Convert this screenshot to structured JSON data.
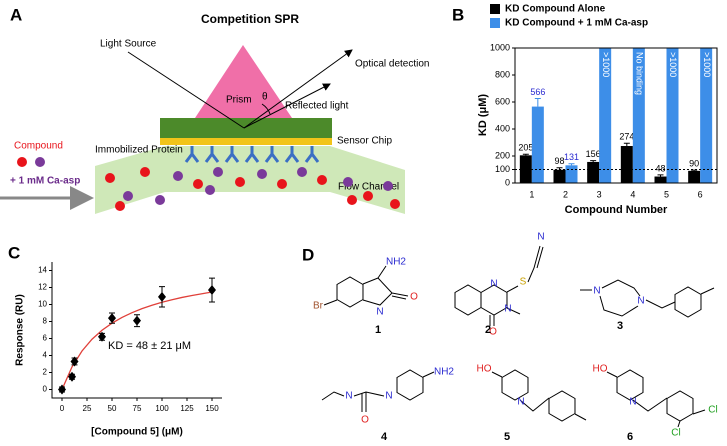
{
  "panel_a": {
    "label": "A",
    "title": "Competition SPR",
    "light_source": "Light Source",
    "optical_detection": "Optical detection",
    "prism": "Prism",
    "theta": "θ",
    "reflected_light": "Reflected light",
    "sensor_chip": "Sensor Chip",
    "immobilized_protein": "Immobilized Protein",
    "compound": "Compound",
    "ca_asp": "+ 1 mM Ca-asp",
    "flow_channel": "Flow Channel"
  },
  "chart_data": [
    {
      "type": "bar",
      "panel_label": "B",
      "xlabel": "Compound Number",
      "ylabel": "KD (μM)",
      "categories": [
        "1",
        "2",
        "3",
        "4",
        "5",
        "6"
      ],
      "series": [
        {
          "name": "KD Compound Alone",
          "color": "#000000",
          "label_color": "#000000",
          "values": [
            205,
            98,
            156,
            274,
            48,
            90
          ],
          "errors": [
            8,
            15,
            10,
            20,
            12,
            5
          ]
        },
        {
          "name": "KD Compound + 1 mM Ca-asp",
          "color": "#3d8ee8",
          "label_color": "#2a2ad0",
          "values": [
            566,
            131,
            1000,
            1000,
            1000,
            1000
          ],
          "value_labels": [
            "566",
            "131",
            ">1000",
            "No binding",
            ">1000",
            ">1000"
          ],
          "errors": [
            60,
            12,
            null,
            null,
            null,
            null
          ]
        }
      ],
      "ylim": [
        0,
        1000
      ],
      "yticks": [
        0,
        100,
        200,
        400,
        600,
        800,
        1000
      ],
      "reference_line": 100
    },
    {
      "type": "scatter",
      "panel_label": "C",
      "xlabel": "[Compound 5] (μM)",
      "ylabel": "Response (RU)",
      "annotation": "KD = 48 ± 21 μM",
      "xlim": [
        -10,
        160
      ],
      "xticks": [
        0,
        25,
        50,
        75,
        100,
        125,
        150
      ],
      "ylim": [
        -1,
        15
      ],
      "yticks": [
        0,
        2,
        4,
        6,
        8,
        10,
        12,
        14
      ],
      "series": [
        {
          "color": "#000000",
          "x": [
            0,
            10,
            12.5,
            40,
            50,
            75,
            100,
            150
          ],
          "values": [
            0,
            1.5,
            3.3,
            6.2,
            8.4,
            8.1,
            10.9,
            11.7
          ],
          "errors": [
            0.3,
            0.3,
            0.4,
            0.4,
            0.6,
            0.7,
            1.2,
            1.4
          ]
        }
      ],
      "fit": {
        "color": "#e0403a",
        "x": [
          0,
          10,
          20,
          30,
          40,
          50,
          60,
          70,
          80,
          90,
          100,
          110,
          120,
          130,
          140,
          150
        ],
        "values": [
          0,
          2.66,
          4.53,
          5.91,
          6.97,
          7.8,
          8.48,
          9.04,
          9.51,
          9.91,
          10.26,
          10.56,
          10.83,
          11.06,
          11.27,
          11.47
        ]
      }
    }
  ],
  "panel_d": {
    "label": "D",
    "compounds": [
      {
        "number": 1,
        "atoms": [
          {
            "text": "Br",
            "color": "#a0522d"
          },
          {
            "text": "NH2",
            "color": "#2a2ad0"
          },
          {
            "text": "O",
            "color": "#e02020"
          },
          {
            "text": "N",
            "color": "#2a2ad0"
          }
        ]
      },
      {
        "number": 2,
        "atoms": [
          {
            "text": "N",
            "color": "#2a2ad0"
          },
          {
            "text": "N",
            "color": "#2a2ad0"
          },
          {
            "text": "S",
            "color": "#c8a000"
          },
          {
            "text": "N",
            "color": "#2a2ad0"
          },
          {
            "text": "O",
            "color": "#e02020"
          }
        ]
      },
      {
        "number": 3,
        "atoms": [
          {
            "text": "N",
            "color": "#2a2ad0"
          },
          {
            "text": "N",
            "color": "#2a2ad0"
          }
        ]
      },
      {
        "number": 4,
        "atoms": [
          {
            "text": "N",
            "color": "#2a2ad0"
          },
          {
            "text": "O",
            "color": "#e02020"
          },
          {
            "text": "N",
            "color": "#2a2ad0"
          },
          {
            "text": "NH2",
            "color": "#2a2ad0"
          }
        ]
      },
      {
        "number": 5,
        "atoms": [
          {
            "text": "HO",
            "color": "#e02020"
          },
          {
            "text": "N",
            "color": "#2a2ad0"
          }
        ]
      },
      {
        "number": 6,
        "atoms": [
          {
            "text": "HO",
            "color": "#e02020"
          },
          {
            "text": "N",
            "color": "#2a2ad0"
          },
          {
            "text": "Cl",
            "color": "#20a020"
          },
          {
            "text": "Cl",
            "color": "#20a020"
          }
        ]
      }
    ]
  }
}
